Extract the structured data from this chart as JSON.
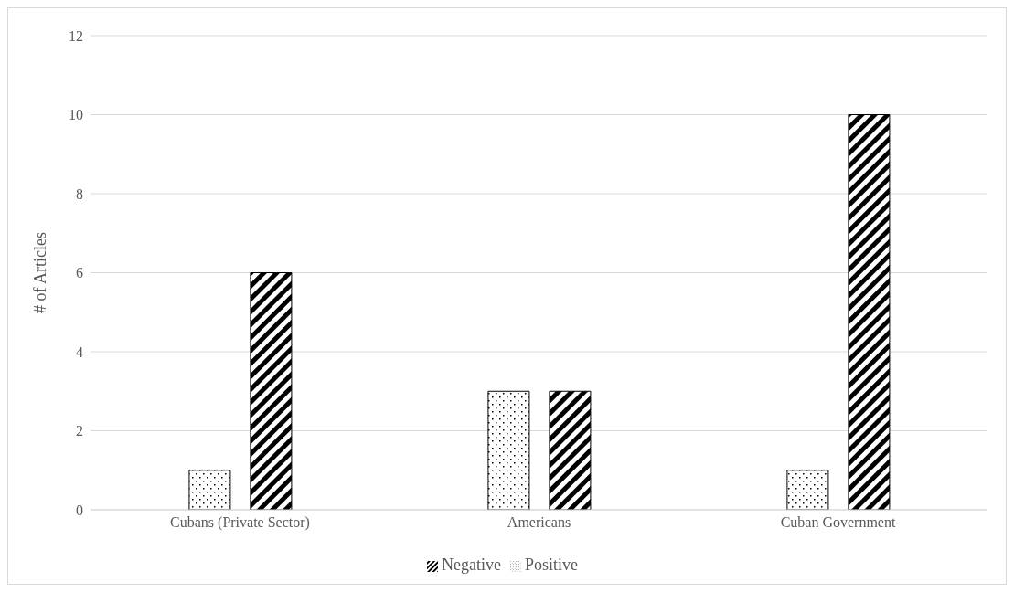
{
  "chart_data": {
    "type": "bar",
    "ylabel": "# of Articles",
    "categories": [
      "Cubans (Private Sector)",
      "Americans",
      "Cuban Government"
    ],
    "series": [
      {
        "name": "Positive",
        "color": "#000000",
        "values": [
          1,
          3,
          1
        ]
      },
      {
        "name": "Negative",
        "color": "#000000",
        "values": [
          6,
          3,
          10
        ]
      }
    ],
    "ylim": [
      0,
      12
    ],
    "yticks": [
      0,
      2,
      4,
      6,
      8,
      10,
      12
    ],
    "grid": "y",
    "legend": "bottom"
  }
}
